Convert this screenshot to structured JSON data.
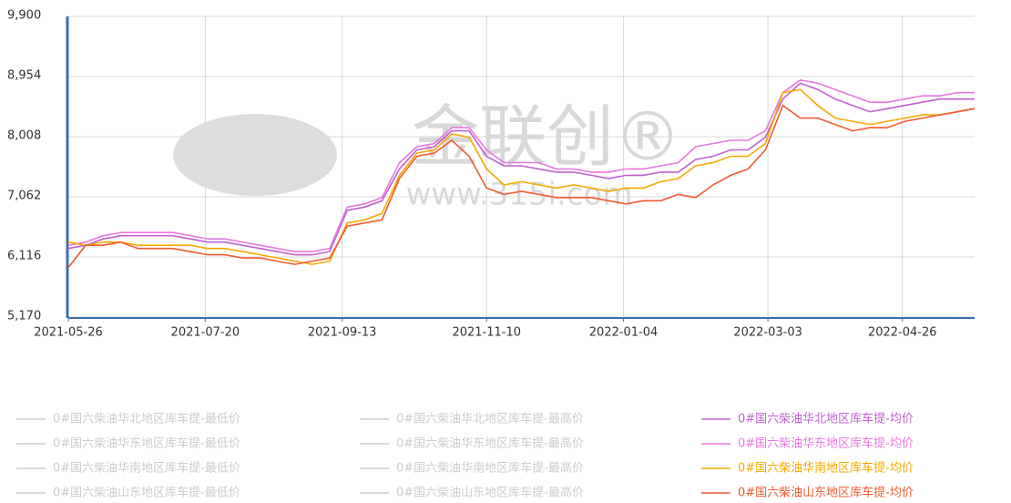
{
  "chart_data": {
    "type": "line",
    "watermark": "金联创®",
    "watermark_url": "www.315i.com",
    "x": [
      "2021-05-26",
      "2021-06-02",
      "2021-06-09",
      "2021-06-16",
      "2021-06-23",
      "2021-06-30",
      "2021-07-07",
      "2021-07-14",
      "2021-07-21",
      "2021-07-28",
      "2021-08-04",
      "2021-08-11",
      "2021-08-18",
      "2021-08-25",
      "2021-09-01",
      "2021-09-08",
      "2021-09-15",
      "2021-09-22",
      "2021-09-29",
      "2021-10-06",
      "2021-10-13",
      "2021-10-20",
      "2021-10-27",
      "2021-11-03",
      "2021-11-10",
      "2021-11-17",
      "2021-11-24",
      "2021-12-01",
      "2021-12-08",
      "2021-12-15",
      "2021-12-22",
      "2021-12-29",
      "2022-01-05",
      "2022-01-12",
      "2022-01-19",
      "2022-01-26",
      "2022-02-02",
      "2022-02-09",
      "2022-02-16",
      "2022-02-23",
      "2022-03-02",
      "2022-03-09",
      "2022-03-16",
      "2022-03-23",
      "2022-03-30",
      "2022-04-06",
      "2022-04-13",
      "2022-04-20",
      "2022-04-27",
      "2022-05-04",
      "2022-05-11",
      "2022-05-18",
      "2022-05-25"
    ],
    "xlim": [
      "2021-05-26",
      "2022-05-25"
    ],
    "xticks": [
      "2021-05-26",
      "2021-07-20",
      "2021-09-13",
      "2021-11-10",
      "2022-01-04",
      "2022-03-03",
      "2022-04-26"
    ],
    "ylim": [
      5170,
      9900
    ],
    "yticks": [
      {
        "value": 5170,
        "label": "5,170"
      },
      {
        "value": 6116,
        "label": "6,116"
      },
      {
        "value": 7062,
        "label": "7,062"
      },
      {
        "value": 8008,
        "label": "8,008"
      },
      {
        "value": 8954,
        "label": "8,954"
      },
      {
        "value": 9900,
        "label": "9,900"
      }
    ],
    "grid": true,
    "series": [
      {
        "name": "0#国六柴油华北地区库车提-最低价",
        "color": "#cccccc",
        "visible": false
      },
      {
        "name": "0#国六柴油华北地区库车提-最高价",
        "color": "#cccccc",
        "visible": false
      },
      {
        "name": "0#国六柴油华北地区库车提-均价",
        "color": "#c060d0",
        "visible": true,
        "values": [
          6250,
          6300,
          6400,
          6450,
          6450,
          6450,
          6450,
          6400,
          6350,
          6350,
          6300,
          6250,
          6200,
          6150,
          6150,
          6200,
          6850,
          6900,
          7000,
          7500,
          7800,
          7850,
          8100,
          8100,
          7700,
          7550,
          7550,
          7500,
          7450,
          7450,
          7400,
          7350,
          7400,
          7400,
          7450,
          7450,
          7650,
          7700,
          7800,
          7800,
          8000,
          8600,
          8850,
          8750,
          8600,
          8500,
          8400,
          8450,
          8500,
          8550,
          8600,
          8600,
          8600
        ]
      },
      {
        "name": "0#国六柴油华东地区库车提-最低价",
        "color": "#cccccc",
        "visible": false
      },
      {
        "name": "0#国六柴油华东地区库车提-最高价",
        "color": "#cccccc",
        "visible": false
      },
      {
        "name": "0#国六柴油华东地区库车提-均价",
        "color": "#e878e0",
        "visible": true,
        "values": [
          6300,
          6350,
          6450,
          6500,
          6500,
          6500,
          6500,
          6450,
          6400,
          6400,
          6350,
          6300,
          6250,
          6200,
          6200,
          6250,
          6900,
          6950,
          7050,
          7600,
          7850,
          7900,
          8150,
          8150,
          7800,
          7600,
          7600,
          7600,
          7500,
          7500,
          7450,
          7450,
          7500,
          7500,
          7550,
          7600,
          7850,
          7900,
          7950,
          7950,
          8100,
          8700,
          8900,
          8850,
          8750,
          8650,
          8550,
          8550,
          8600,
          8650,
          8650,
          8700,
          8700
        ]
      },
      {
        "name": "0#国六柴油华南地区库车提-最低价",
        "color": "#cccccc",
        "visible": false
      },
      {
        "name": "0#国六柴油华南地区库车提-最高价",
        "color": "#cccccc",
        "visible": false
      },
      {
        "name": "0#国六柴油华南地区库车提-均价",
        "color": "#f5a800",
        "visible": true,
        "values": [
          6350,
          6300,
          6350,
          6350,
          6300,
          6300,
          6300,
          6300,
          6250,
          6250,
          6200,
          6150,
          6100,
          6050,
          6000,
          6050,
          6650,
          6700,
          6800,
          7400,
          7750,
          7800,
          8050,
          8000,
          7500,
          7250,
          7300,
          7250,
          7200,
          7250,
          7200,
          7150,
          7200,
          7200,
          7300,
          7350,
          7550,
          7600,
          7700,
          7700,
          7900,
          8700,
          8750,
          8500,
          8300,
          8250,
          8200,
          8250,
          8300,
          8350,
          8350,
          8400,
          8450
        ]
      },
      {
        "name": "0#国六柴油山东地区库车提-最低价",
        "color": "#cccccc",
        "visible": false
      },
      {
        "name": "0#国六柴油山东地区库车提-最高价",
        "color": "#cccccc",
        "visible": false
      },
      {
        "name": "0#国六柴油山东地区库车提-均价",
        "color": "#f05a30",
        "visible": true,
        "values": [
          5950,
          6300,
          6300,
          6350,
          6250,
          6250,
          6250,
          6200,
          6150,
          6150,
          6100,
          6100,
          6050,
          6000,
          6050,
          6100,
          6600,
          6650,
          6700,
          7350,
          7700,
          7750,
          7950,
          7700,
          7200,
          7100,
          7150,
          7100,
          7050,
          7050,
          7050,
          7000,
          6950,
          7000,
          7000,
          7100,
          7050,
          7250,
          7400,
          7500,
          7800,
          8500,
          8300,
          8300,
          8200,
          8100,
          8150,
          8150,
          8250,
          8300,
          8350,
          8400,
          8450
        ]
      }
    ]
  }
}
